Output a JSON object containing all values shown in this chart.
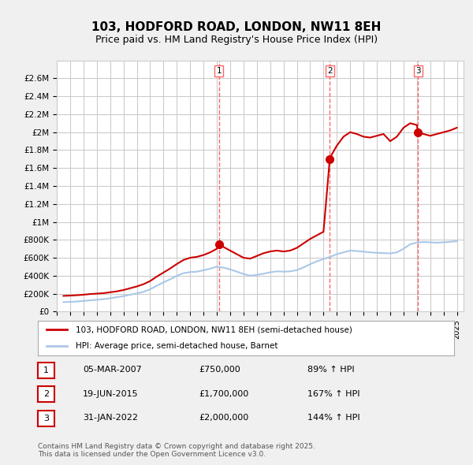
{
  "title": "103, HODFORD ROAD, LONDON, NW11 8EH",
  "subtitle": "Price paid vs. HM Land Registry's House Price Index (HPI)",
  "ylabel": "",
  "ylim": [
    0,
    2800000
  ],
  "yticks": [
    0,
    200000,
    400000,
    600000,
    800000,
    1000000,
    1200000,
    1400000,
    1600000,
    1800000,
    2000000,
    2200000,
    2400000,
    2600000
  ],
  "ytick_labels": [
    "£0",
    "£200K",
    "£400K",
    "£600K",
    "£800K",
    "£1M",
    "£1.2M",
    "£1.4M",
    "£1.6M",
    "£1.8M",
    "£2M",
    "£2.2M",
    "£2.4M",
    "£2.6M"
  ],
  "bg_color": "#f0f0f0",
  "plot_bg_color": "#ffffff",
  "grid_color": "#cccccc",
  "red_line_color": "#cc0000",
  "blue_line_color": "#aac8e8",
  "dashed_line_color": "#ff6666",
  "sale_marker_color": "#cc0000",
  "transactions": [
    {
      "date": 2007.17,
      "price": 750000,
      "label": "1"
    },
    {
      "date": 2015.47,
      "price": 1700000,
      "label": "2"
    },
    {
      "date": 2022.08,
      "price": 2000000,
      "label": "3"
    }
  ],
  "table_rows": [
    {
      "num": "1",
      "date": "05-MAR-2007",
      "price": "£750,000",
      "hpi": "89% ↑ HPI"
    },
    {
      "num": "2",
      "date": "19-JUN-2015",
      "price": "£1,700,000",
      "hpi": "167% ↑ HPI"
    },
    {
      "num": "3",
      "date": "31-JAN-2022",
      "price": "£2,000,000",
      "hpi": "144% ↑ HPI"
    }
  ],
  "legend_line1": "103, HODFORD ROAD, LONDON, NW11 8EH (semi-detached house)",
  "legend_line2": "HPI: Average price, semi-detached house, Barnet",
  "footnote": "Contains HM Land Registry data © Crown copyright and database right 2025.\nThis data is licensed under the Open Government Licence v3.0.",
  "hpi_red_data": {
    "years": [
      1995.5,
      1996.0,
      1996.5,
      1997.0,
      1997.5,
      1998.0,
      1998.5,
      1999.0,
      1999.5,
      2000.0,
      2000.5,
      2001.0,
      2001.5,
      2002.0,
      2002.5,
      2003.0,
      2003.5,
      2004.0,
      2004.5,
      2005.0,
      2005.5,
      2006.0,
      2006.5,
      2007.0,
      2007.17,
      2007.5,
      2008.0,
      2008.5,
      2009.0,
      2009.5,
      2010.0,
      2010.5,
      2011.0,
      2011.5,
      2012.0,
      2012.5,
      2013.0,
      2013.5,
      2014.0,
      2014.5,
      2015.0,
      2015.47,
      2015.5,
      2016.0,
      2016.5,
      2017.0,
      2017.5,
      2018.0,
      2018.5,
      2019.0,
      2019.5,
      2020.0,
      2020.5,
      2021.0,
      2021.5,
      2022.0,
      2022.08,
      2022.5,
      2023.0,
      2023.5,
      2024.0,
      2024.5,
      2025.0
    ],
    "prices": [
      175000,
      178000,
      182000,
      188000,
      195000,
      200000,
      205000,
      215000,
      225000,
      240000,
      260000,
      280000,
      305000,
      340000,
      390000,
      435000,
      480000,
      530000,
      575000,
      600000,
      610000,
      630000,
      660000,
      700000,
      750000,
      720000,
      680000,
      640000,
      600000,
      590000,
      620000,
      650000,
      670000,
      680000,
      670000,
      680000,
      710000,
      760000,
      810000,
      850000,
      890000,
      1700000,
      1720000,
      1850000,
      1950000,
      2000000,
      1980000,
      1950000,
      1940000,
      1960000,
      1980000,
      1900000,
      1950000,
      2050000,
      2100000,
      2080000,
      2000000,
      1980000,
      1960000,
      1980000,
      2000000,
      2020000,
      2050000
    ]
  },
  "hpi_blue_data": {
    "years": [
      1995.5,
      1996.0,
      1996.5,
      1997.0,
      1997.5,
      1998.0,
      1998.5,
      1999.0,
      1999.5,
      2000.0,
      2000.5,
      2001.0,
      2001.5,
      2002.0,
      2002.5,
      2003.0,
      2003.5,
      2004.0,
      2004.5,
      2005.0,
      2005.5,
      2006.0,
      2006.5,
      2007.0,
      2007.5,
      2008.0,
      2008.5,
      2009.0,
      2009.5,
      2010.0,
      2010.5,
      2011.0,
      2011.5,
      2012.0,
      2012.5,
      2013.0,
      2013.5,
      2014.0,
      2014.5,
      2015.0,
      2015.5,
      2016.0,
      2016.5,
      2017.0,
      2017.5,
      2018.0,
      2018.5,
      2019.0,
      2019.5,
      2020.0,
      2020.5,
      2021.0,
      2021.5,
      2022.0,
      2022.5,
      2023.0,
      2023.5,
      2024.0,
      2024.5,
      2025.0
    ],
    "prices": [
      105000,
      108000,
      112000,
      118000,
      125000,
      132000,
      138000,
      148000,
      160000,
      172000,
      188000,
      202000,
      220000,
      248000,
      288000,
      325000,
      360000,
      398000,
      428000,
      440000,
      445000,
      460000,
      478000,
      500000,
      490000,
      470000,
      445000,
      418000,
      400000,
      408000,
      422000,
      438000,
      448000,
      445000,
      448000,
      462000,
      492000,
      528000,
      560000,
      585000,
      610000,
      640000,
      660000,
      680000,
      675000,
      668000,
      660000,
      655000,
      652000,
      648000,
      660000,
      700000,
      750000,
      770000,
      775000,
      772000,
      768000,
      772000,
      778000,
      785000
    ]
  },
  "xmin": 1995.0,
  "xmax": 2025.5
}
